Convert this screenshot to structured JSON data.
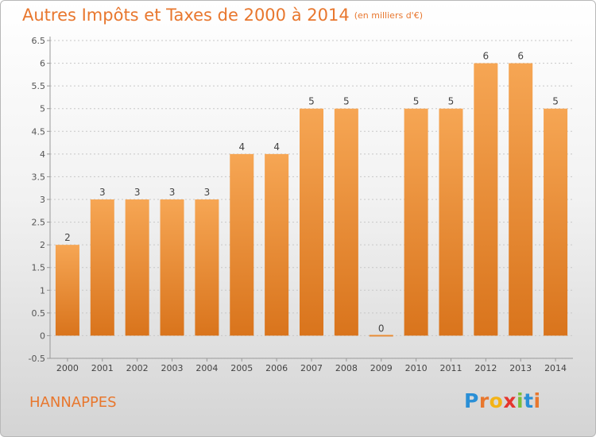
{
  "title": "Autres Impôts et Taxes de 2000 à 2014",
  "unit": "(en milliers d'€)",
  "city": "HANNAPPES",
  "brand": {
    "text": "Proxiti",
    "letters": [
      "P",
      "r",
      "o",
      "x",
      "i",
      "t",
      "i"
    ],
    "colors": [
      "#2a8fd6",
      "#e8772e",
      "#f3b316",
      "#e5362e",
      "#7cbf3a",
      "#2a8fd6",
      "#e8772e"
    ]
  },
  "colors": {
    "bar_top": "#f6a654",
    "bar_bottom": "#d9741c",
    "accent": "#e8772e",
    "grid": "#c8c8c8"
  },
  "chart_data": {
    "type": "bar",
    "categories": [
      "2000",
      "2001",
      "2002",
      "2003",
      "2004",
      "2005",
      "2006",
      "2007",
      "2008",
      "2009",
      "2010",
      "2011",
      "2012",
      "2013",
      "2014"
    ],
    "values": [
      2,
      3,
      3,
      3,
      3,
      4,
      4,
      5,
      5,
      0,
      5,
      5,
      6,
      6,
      5
    ],
    "data_labels": [
      "2",
      "3",
      "3",
      "3",
      "3",
      "4",
      "4",
      "5",
      "5",
      "0",
      "5",
      "5",
      "6",
      "6",
      "5"
    ],
    "yticks": [
      "-0.5",
      "0",
      "0.5",
      "1",
      "1.5",
      "2",
      "2.5",
      "3",
      "3.5",
      "4",
      "4.5",
      "5",
      "5.5",
      "6",
      "6.5"
    ],
    "ylim": [
      -0.5,
      6.5
    ],
    "grid": true
  }
}
